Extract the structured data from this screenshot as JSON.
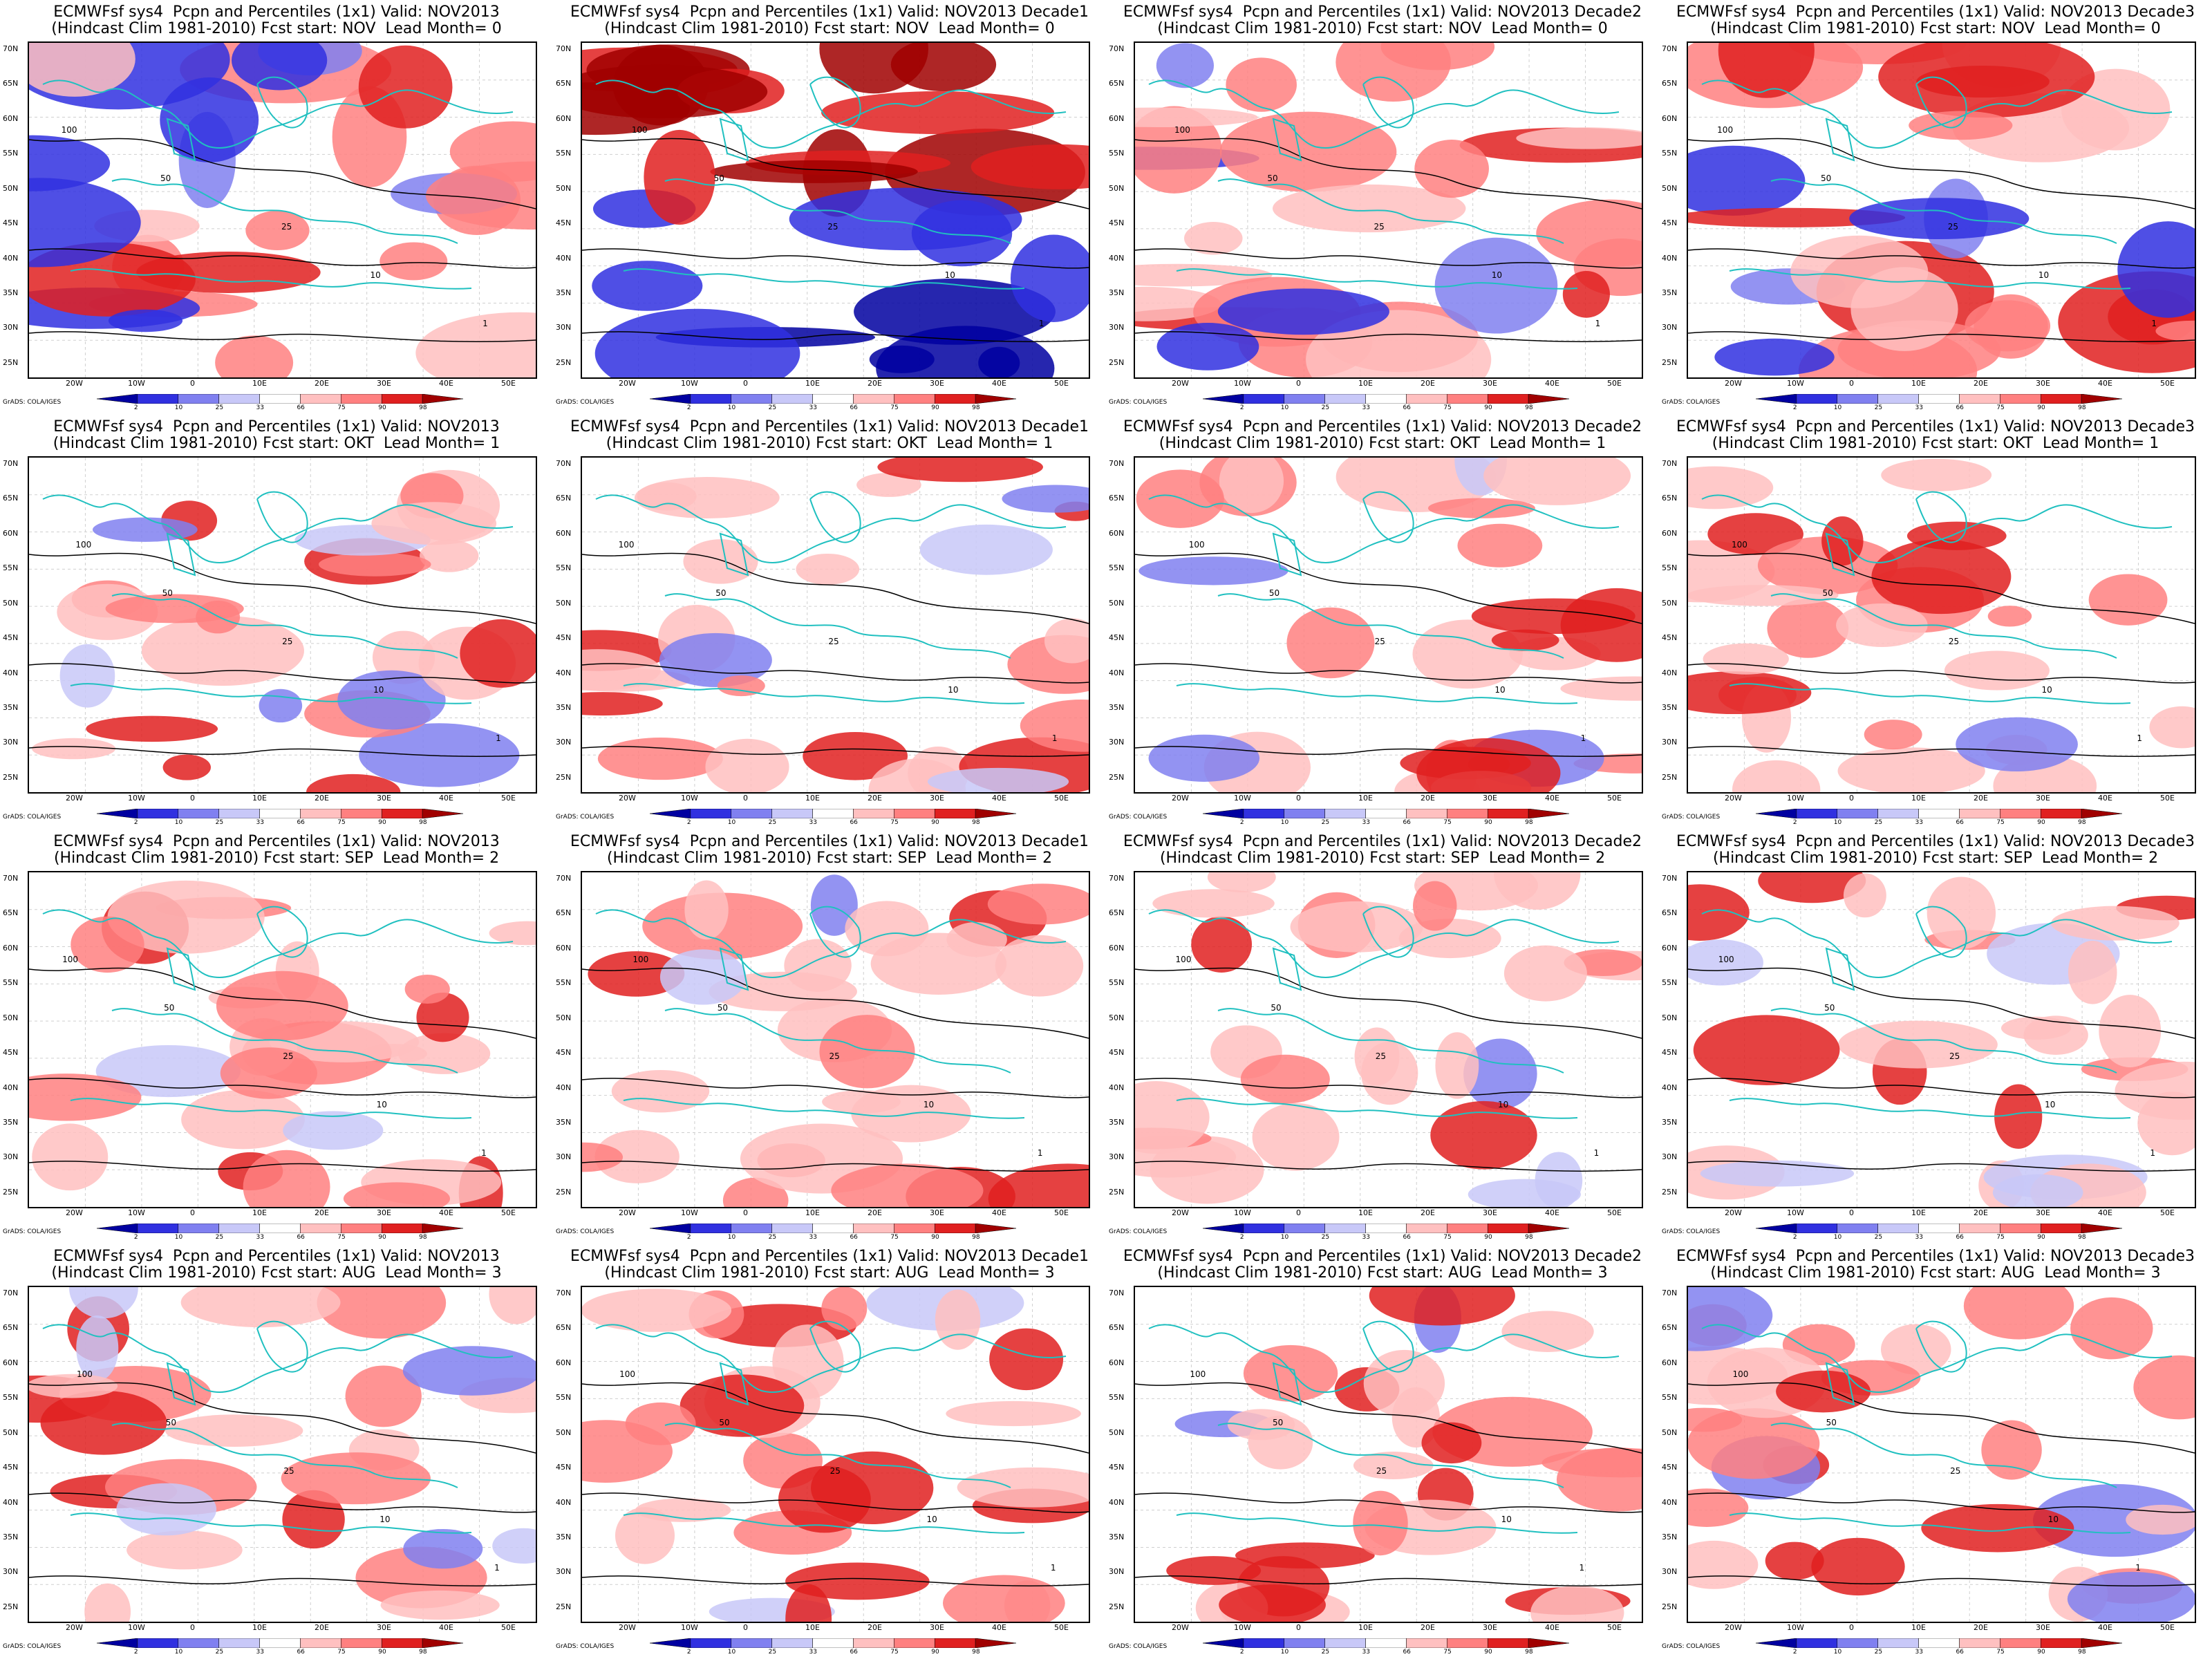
{
  "figure": {
    "model_title": "ECMWFsf sys4  Pcpn and Percentiles (1x1) Valid:",
    "hindcast_label": "(Hindcast Clim 1981-2010) Fcst start:",
    "lead_label": "Lead Month=",
    "credit": "GrADS: COLA/IGES",
    "lat_ticks": [
      "70N",
      "65N",
      "60N",
      "55N",
      "50N",
      "45N",
      "40N",
      "35N",
      "30N",
      "25N"
    ],
    "lon_ticks": [
      "20W",
      "10W",
      "0",
      "10E",
      "20E",
      "30E",
      "40E",
      "50E"
    ],
    "colorbar": {
      "labels": [
        "2",
        "10",
        "25",
        "33",
        "66",
        "75",
        "90",
        "98"
      ],
      "colors": [
        "#0000a0",
        "#3030e0",
        "#8080f0",
        "#c8c8f8",
        "#ffffff",
        "#ffc0c0",
        "#ff8080",
        "#e02020",
        "#a00000"
      ]
    }
  },
  "rows": [
    {
      "fcst_start": "NOV",
      "lead": "0",
      "accent": "strong"
    },
    {
      "fcst_start": "OKT",
      "lead": "1",
      "accent": "medium"
    },
    {
      "fcst_start": "SEP",
      "lead": "2",
      "accent": "medium"
    },
    {
      "fcst_start": "AUG",
      "lead": "3",
      "accent": "medium"
    }
  ],
  "columns": [
    {
      "valid": "NOV2013"
    },
    {
      "valid": "NOV2013 Decade1"
    },
    {
      "valid": "NOV2013 Decade2"
    },
    {
      "valid": "NOV2013 Decade3"
    }
  ],
  "contour_labels": [
    "100",
    "50",
    "25",
    "10",
    "1"
  ]
}
